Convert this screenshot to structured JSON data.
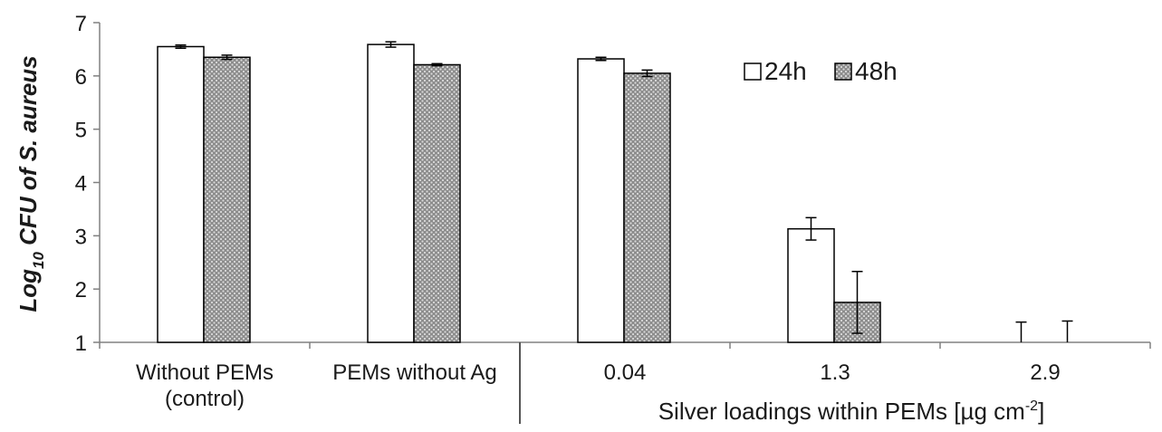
{
  "chart_data": {
    "type": "bar",
    "categories": [
      "Without PEMs\n(control)",
      "PEMs without Ag",
      "0.04",
      "1.3",
      "2.9"
    ],
    "series": [
      {
        "name": "24h",
        "values": [
          6.55,
          6.59,
          6.32,
          3.13,
          1.0
        ],
        "errors": [
          0.03,
          0.05,
          0.03,
          0.21,
          0.38
        ],
        "color": "#ffffff"
      },
      {
        "name": "48h",
        "values": [
          6.35,
          6.21,
          6.05,
          1.75,
          1.0
        ],
        "errors": [
          0.04,
          0.02,
          0.06,
          0.58,
          0.4
        ],
        "color": "#8c8c8c"
      }
    ],
    "ylim": [
      1,
      7
    ],
    "yticks": [
      1,
      2,
      3,
      4,
      5,
      6,
      7
    ],
    "ylabel_main": "Log",
    "ylabel_sub": "10",
    "ylabel_rest": " CFU of S. aureus",
    "xlabel_main": "Silver loadings within PEMs [µg cm",
    "xlabel_sup": "-2",
    "xlabel_end": "]",
    "legend_position": "top-right",
    "grid": false
  }
}
